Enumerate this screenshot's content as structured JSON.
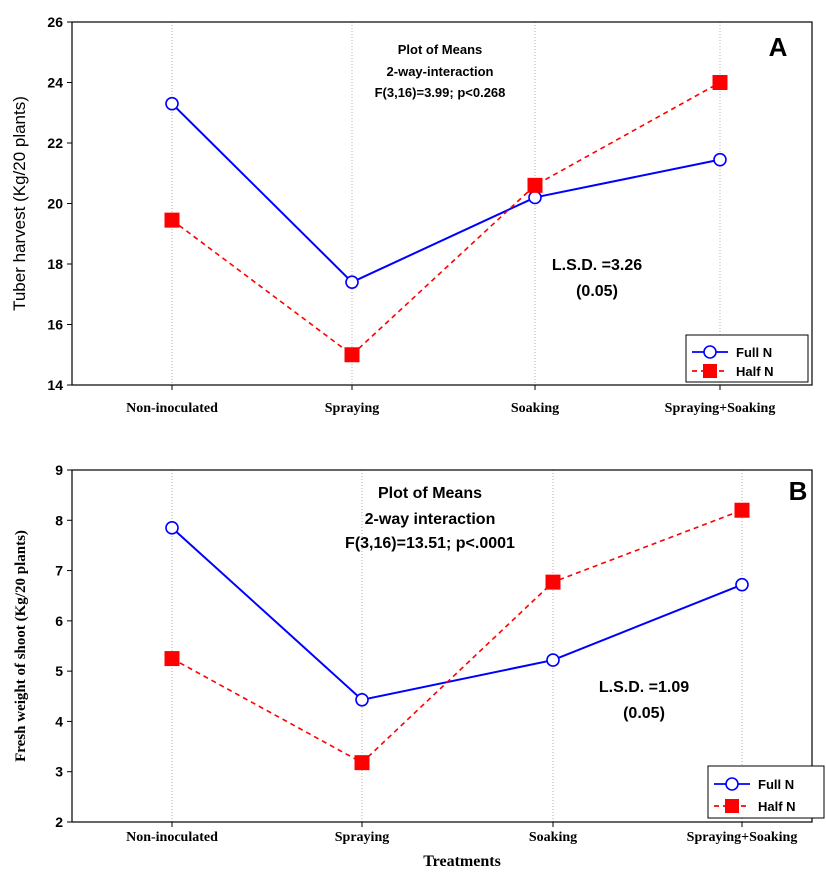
{
  "chart_data": [
    {
      "type": "line",
      "panel_label": "A",
      "ylabel": "Tuber harvest (Kg/20 plants)",
      "xlabel": "",
      "categories": [
        "Non-inoculated",
        "Spraying",
        "Soaking",
        "Spraying+Soaking"
      ],
      "ylim": [
        14,
        26
      ],
      "yticks": [
        14,
        16,
        18,
        20,
        22,
        24,
        26
      ],
      "grid": "vertical",
      "annotation_lines": [
        "Plot of Means",
        "2-way-interaction",
        "F(3,16)=3.99; p<0.268"
      ],
      "lsd_lines": [
        "L.S.D. =3.26",
        "(0.05)"
      ],
      "legend_position": "bottom-right",
      "series": [
        {
          "name": "Full N",
          "values": [
            23.3,
            17.4,
            20.2,
            21.45
          ],
          "color": "#0000ff",
          "marker": "circle",
          "line": "solid"
        },
        {
          "name": "Half N",
          "values": [
            19.45,
            15.0,
            20.6,
            24.0
          ],
          "color": "#ff0000",
          "marker": "square",
          "line": "dashed"
        }
      ]
    },
    {
      "type": "line",
      "panel_label": "B",
      "ylabel": "Fresh weight of shoot (Kg/20 plants)",
      "xlabel": "Treatments",
      "categories": [
        "Non-inoculated",
        "Spraying",
        "Soaking",
        "Spraying+Soaking"
      ],
      "ylim": [
        2,
        9
      ],
      "yticks": [
        2,
        3,
        4,
        5,
        6,
        7,
        8,
        9
      ],
      "grid": "vertical",
      "annotation_lines": [
        "Plot of Means",
        "2-way interaction",
        "F(3,16)=13.51; p<.0001"
      ],
      "lsd_lines": [
        "L.S.D. =1.09",
        "(0.05)"
      ],
      "legend_position": "bottom-right",
      "series": [
        {
          "name": "Full N",
          "values": [
            7.85,
            4.43,
            5.22,
            6.72
          ],
          "color": "#0000ff",
          "marker": "circle",
          "line": "solid"
        },
        {
          "name": "Half N",
          "values": [
            5.25,
            3.18,
            6.77,
            8.2
          ],
          "color": "#ff0000",
          "marker": "square",
          "line": "dashed"
        }
      ]
    }
  ]
}
